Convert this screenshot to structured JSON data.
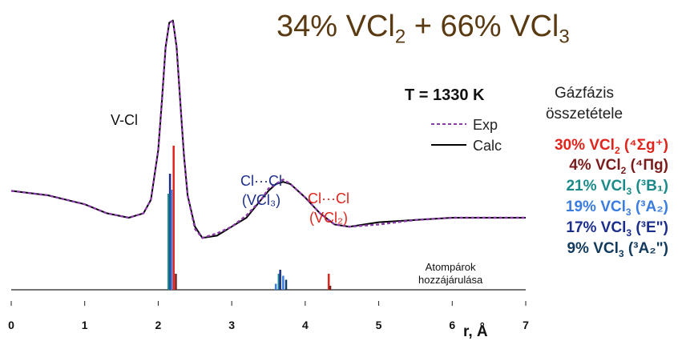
{
  "title": {
    "prefix": "34% VCl",
    "sub1": "2",
    "mid": " + 66% VCl",
    "sub2": "3"
  },
  "temperature_label": "T = 1330 K",
  "legend": {
    "exp": "Exp",
    "calc": "Calc"
  },
  "composition": {
    "title_line1": "Gázfázis",
    "title_line2": "összetétele",
    "items": [
      {
        "pct": "30% VCl",
        "sub": "2",
        "state": "(⁴Σg⁺)",
        "color": "#e0241c"
      },
      {
        "pct": "4% VCl",
        "sub": "2",
        "state": "(⁴Πg)",
        "color": "#7a1c1c"
      },
      {
        "pct": "21% VCl",
        "sub": "3",
        "state": "(³B₁)",
        "color": "#1a8a8a"
      },
      {
        "pct": "19% VCl",
        "sub": "3",
        "state": "(³A₂)",
        "color": "#3a7ce0"
      },
      {
        "pct": "17% VCl",
        "sub": "3",
        "state": "(³E\")",
        "color": "#1c2e8c"
      },
      {
        "pct": "9% VCl",
        "sub": "3",
        "state": "(³A₂\")",
        "color": "#123a5c"
      }
    ]
  },
  "annotations": {
    "vcl": "V-Cl",
    "clcl_vcl3_line1": "Cl···Cl",
    "clcl_vcl3_line2": "(VCl₃)",
    "clcl_vcl2_line1": "Cl···Cl",
    "clcl_vcl2_line2": "(VCl₂)",
    "atom_pairs_line1": "Atompárok",
    "atom_pairs_line2": "hozzájárulása"
  },
  "chart_data": {
    "type": "line",
    "xlabel": "r, Å",
    "xlim": [
      0,
      7
    ],
    "x_ticks": [
      "0",
      "1",
      "2",
      "3",
      "4",
      "5",
      "6",
      "7"
    ],
    "series": [
      {
        "name": "Calc",
        "color": "#000000",
        "style": "solid",
        "x": [
          0.0,
          0.5,
          1.0,
          1.3,
          1.6,
          1.8,
          1.9,
          2.0,
          2.05,
          2.1,
          2.15,
          2.2,
          2.25,
          2.3,
          2.35,
          2.4,
          2.5,
          2.6,
          2.8,
          3.0,
          3.2,
          3.4,
          3.5,
          3.6,
          3.7,
          3.8,
          4.0,
          4.2,
          4.4,
          4.6,
          5.0,
          5.5,
          6.0,
          6.5,
          7.0
        ],
        "y": [
          0.22,
          0.2,
          0.16,
          0.12,
          0.1,
          0.12,
          0.18,
          0.4,
          0.62,
          0.86,
          0.97,
          0.98,
          0.86,
          0.62,
          0.38,
          0.2,
          0.06,
          0.01,
          0.02,
          0.06,
          0.1,
          0.18,
          0.22,
          0.25,
          0.26,
          0.25,
          0.19,
          0.12,
          0.07,
          0.06,
          0.08,
          0.09,
          0.1,
          0.1,
          0.1
        ]
      },
      {
        "name": "Exp",
        "color": "#8a3aa8",
        "style": "dashed",
        "x": [
          0.0,
          0.5,
          1.0,
          1.3,
          1.6,
          1.8,
          1.9,
          2.0,
          2.05,
          2.1,
          2.15,
          2.2,
          2.25,
          2.3,
          2.35,
          2.4,
          2.5,
          2.6,
          2.8,
          3.0,
          3.2,
          3.4,
          3.5,
          3.6,
          3.7,
          3.8,
          4.0,
          4.2,
          4.4,
          4.6,
          5.0,
          5.5,
          6.0,
          6.5,
          7.0
        ],
        "y": [
          0.22,
          0.2,
          0.16,
          0.12,
          0.1,
          0.12,
          0.18,
          0.4,
          0.62,
          0.86,
          0.97,
          0.98,
          0.86,
          0.62,
          0.38,
          0.2,
          0.05,
          0.01,
          0.03,
          0.06,
          0.11,
          0.18,
          0.23,
          0.25,
          0.27,
          0.25,
          0.19,
          0.12,
          0.07,
          0.06,
          0.07,
          0.09,
          0.1,
          0.1,
          0.1
        ]
      }
    ],
    "atom_pair_sticks": [
      {
        "r": 2.16,
        "h": 0.58,
        "color": "#1c2e8c"
      },
      {
        "r": 2.14,
        "h": 0.48,
        "color": "#1a8a8a"
      },
      {
        "r": 2.18,
        "h": 0.5,
        "color": "#3a7ce0"
      },
      {
        "r": 2.21,
        "h": 0.72,
        "color": "#e0241c"
      },
      {
        "r": 2.24,
        "h": 0.08,
        "color": "#7a1c1c"
      },
      {
        "r": 3.6,
        "h": 0.03,
        "color": "#3a7ce0"
      },
      {
        "r": 3.64,
        "h": 0.08,
        "color": "#1a8a8a"
      },
      {
        "r": 3.66,
        "h": 0.1,
        "color": "#1c2e8c"
      },
      {
        "r": 3.7,
        "h": 0.07,
        "color": "#3a7ce0"
      },
      {
        "r": 3.74,
        "h": 0.05,
        "color": "#123a5c"
      },
      {
        "r": 4.32,
        "h": 0.08,
        "color": "#e0241c"
      },
      {
        "r": 4.34,
        "h": 0.02,
        "color": "#7a1c1c"
      }
    ]
  }
}
